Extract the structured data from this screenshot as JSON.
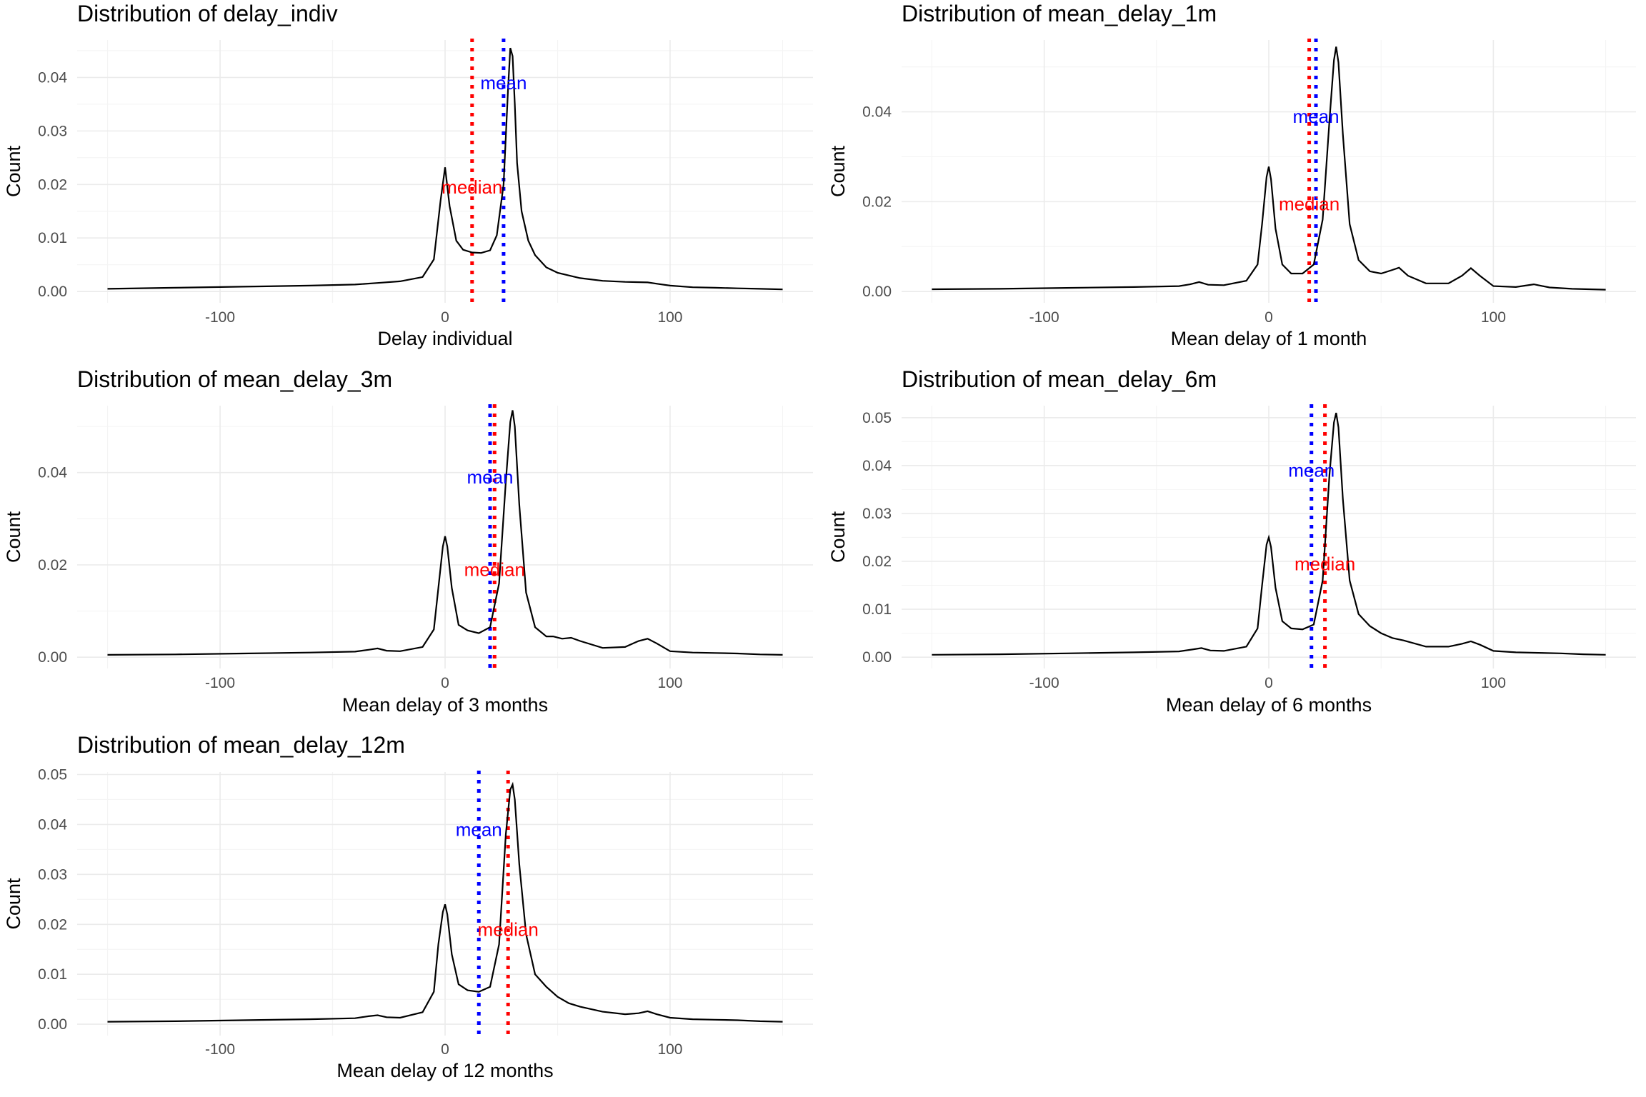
{
  "chart_data": [
    {
      "type": "line",
      "title": "Distribution of delay_indiv",
      "xlabel": "Delay individual",
      "ylabel": "Count",
      "xlim": [
        -150,
        150
      ],
      "ylim": [
        0,
        0.047
      ],
      "x_ticks": [
        -100,
        0,
        100
      ],
      "y_ticks": [
        0.0,
        0.01,
        0.02,
        0.03,
        0.04
      ],
      "y_tick_labels": [
        "0.00",
        "0.01",
        "0.02",
        "0.03",
        "0.04"
      ],
      "grid": true,
      "series": [
        {
          "x": [
            -150,
            -120,
            -90,
            -60,
            -40,
            -30,
            -20,
            -10,
            -5,
            -2,
            0,
            2,
            5,
            8,
            12,
            16,
            20,
            23,
            26,
            28,
            29,
            30,
            31,
            32,
            34,
            37,
            40,
            45,
            50,
            55,
            60,
            70,
            80,
            90,
            95,
            100,
            110,
            120,
            130,
            140,
            150
          ],
          "y": [
            0.0005,
            0.0007,
            0.0009,
            0.0011,
            0.0013,
            0.0016,
            0.0019,
            0.0027,
            0.006,
            0.017,
            0.0232,
            0.016,
            0.0095,
            0.0078,
            0.0073,
            0.0072,
            0.0077,
            0.0105,
            0.02,
            0.038,
            0.0455,
            0.044,
            0.035,
            0.024,
            0.015,
            0.0095,
            0.0068,
            0.0045,
            0.0035,
            0.003,
            0.0025,
            0.002,
            0.0018,
            0.0017,
            0.0014,
            0.0011,
            0.0008,
            0.0007,
            0.0006,
            0.0005,
            0.0004
          ]
        }
      ],
      "reference_lines": [
        {
          "label": "median",
          "x": 12,
          "color": "#ff0000",
          "label_y": 0.0195
        },
        {
          "label": "mean",
          "x": 26,
          "color": "#0000ff",
          "label_y": 0.039
        }
      ]
    },
    {
      "type": "line",
      "title": "Distribution of mean_delay_1m",
      "xlabel": "Mean delay of 1 month",
      "ylabel": "Count",
      "xlim": [
        -150,
        150
      ],
      "ylim": [
        0,
        0.056
      ],
      "x_ticks": [
        -100,
        0,
        100
      ],
      "y_ticks": [
        0.0,
        0.02,
        0.04
      ],
      "y_tick_labels": [
        "0.00",
        "0.02",
        "0.04"
      ],
      "grid": true,
      "series": [
        {
          "x": [
            -150,
            -120,
            -90,
            -60,
            -40,
            -35,
            -31,
            -27,
            -20,
            -10,
            -5,
            -3,
            -1,
            0,
            1,
            3,
            6,
            10,
            15,
            20,
            24,
            27,
            29,
            30,
            31,
            33,
            36,
            40,
            45,
            50,
            55,
            58,
            62,
            70,
            80,
            86,
            90,
            94,
            100,
            110,
            118,
            125,
            135,
            150
          ],
          "y": [
            0.0005,
            0.0006,
            0.0008,
            0.001,
            0.0012,
            0.0016,
            0.0021,
            0.0015,
            0.0014,
            0.0024,
            0.006,
            0.015,
            0.0255,
            0.0278,
            0.025,
            0.014,
            0.006,
            0.004,
            0.004,
            0.006,
            0.016,
            0.038,
            0.0515,
            0.0545,
            0.051,
            0.035,
            0.015,
            0.007,
            0.0045,
            0.004,
            0.0048,
            0.0053,
            0.0035,
            0.0018,
            0.0018,
            0.0035,
            0.0052,
            0.0035,
            0.0012,
            0.001,
            0.0016,
            0.0009,
            0.0006,
            0.0004
          ]
        }
      ],
      "reference_lines": [
        {
          "label": "median",
          "x": 18,
          "color": "#ff0000",
          "label_y": 0.0195
        },
        {
          "label": "mean",
          "x": 21,
          "color": "#0000ff",
          "label_y": 0.039
        }
      ]
    },
    {
      "type": "line",
      "title": "Distribution of mean_delay_3m",
      "xlabel": "Mean delay of 3 months",
      "ylabel": "Count",
      "xlim": [
        -150,
        150
      ],
      "ylim": [
        0,
        0.0545
      ],
      "x_ticks": [
        -100,
        0,
        100
      ],
      "y_ticks": [
        0.0,
        0.02,
        0.04
      ],
      "y_tick_labels": [
        "0.00",
        "0.02",
        "0.04"
      ],
      "grid": true,
      "series": [
        {
          "x": [
            -150,
            -120,
            -90,
            -60,
            -40,
            -34,
            -30,
            -26,
            -20,
            -10,
            -5,
            -3,
            -1,
            0,
            1,
            3,
            6,
            10,
            15,
            20,
            24,
            27,
            29,
            30,
            31,
            33,
            36,
            40,
            45,
            48,
            52,
            56,
            60,
            70,
            80,
            86,
            90,
            94,
            100,
            110,
            120,
            130,
            140,
            150
          ],
          "y": [
            0.0005,
            0.0006,
            0.0008,
            0.001,
            0.0012,
            0.0016,
            0.0019,
            0.0014,
            0.0013,
            0.0022,
            0.006,
            0.015,
            0.024,
            0.0262,
            0.024,
            0.015,
            0.007,
            0.0058,
            0.0052,
            0.0065,
            0.016,
            0.038,
            0.051,
            0.0535,
            0.05,
            0.033,
            0.014,
            0.0065,
            0.0045,
            0.0045,
            0.004,
            0.0042,
            0.0035,
            0.002,
            0.0022,
            0.0035,
            0.004,
            0.003,
            0.0013,
            0.001,
            0.0009,
            0.0008,
            0.0006,
            0.0005
          ]
        }
      ],
      "reference_lines": [
        {
          "label": "median",
          "x": 22,
          "color": "#ff0000",
          "label_y": 0.019
        },
        {
          "label": "mean",
          "x": 20,
          "color": "#0000ff",
          "label_y": 0.039
        }
      ]
    },
    {
      "type": "line",
      "title": "Distribution of mean_delay_6m",
      "xlabel": "Mean delay of 6 months",
      "ylabel": "Count",
      "xlim": [
        -150,
        150
      ],
      "ylim": [
        0,
        0.0525
      ],
      "x_ticks": [
        -100,
        0,
        100
      ],
      "y_ticks": [
        0.0,
        0.01,
        0.02,
        0.03,
        0.04,
        0.05
      ],
      "y_tick_labels": [
        "0.00",
        "0.01",
        "0.02",
        "0.03",
        "0.04",
        "0.05"
      ],
      "grid": true,
      "series": [
        {
          "x": [
            -150,
            -120,
            -90,
            -60,
            -40,
            -34,
            -30,
            -26,
            -20,
            -10,
            -5,
            -3,
            -1,
            0,
            1,
            3,
            6,
            10,
            15,
            20,
            24,
            27,
            29,
            30,
            31,
            33,
            36,
            40,
            45,
            50,
            55,
            60,
            70,
            80,
            86,
            90,
            94,
            100,
            110,
            120,
            130,
            140,
            150
          ],
          "y": [
            0.0005,
            0.0006,
            0.0008,
            0.001,
            0.0012,
            0.0016,
            0.0019,
            0.0014,
            0.0013,
            0.0022,
            0.006,
            0.015,
            0.0235,
            0.025,
            0.023,
            0.0145,
            0.0075,
            0.006,
            0.0058,
            0.0068,
            0.016,
            0.038,
            0.049,
            0.051,
            0.048,
            0.033,
            0.016,
            0.009,
            0.0065,
            0.005,
            0.004,
            0.0035,
            0.0022,
            0.0022,
            0.0028,
            0.0033,
            0.0026,
            0.0013,
            0.001,
            0.0009,
            0.0008,
            0.0006,
            0.0005
          ]
        }
      ],
      "reference_lines": [
        {
          "label": "median",
          "x": 25,
          "color": "#ff0000",
          "label_y": 0.0195
        },
        {
          "label": "mean",
          "x": 19,
          "color": "#0000ff",
          "label_y": 0.039
        }
      ]
    },
    {
      "type": "line",
      "title": "Distribution of mean_delay_12m",
      "xlabel": "Mean delay of 12 months",
      "ylabel": "Count",
      "xlim": [
        -150,
        150
      ],
      "ylim": [
        0,
        0.0505
      ],
      "x_ticks": [
        -100,
        0,
        100
      ],
      "y_ticks": [
        0.0,
        0.01,
        0.02,
        0.03,
        0.04,
        0.05
      ],
      "y_tick_labels": [
        "0.00",
        "0.01",
        "0.02",
        "0.03",
        "0.04",
        "0.05"
      ],
      "grid": true,
      "series": [
        {
          "x": [
            -150,
            -120,
            -90,
            -60,
            -40,
            -34,
            -30,
            -26,
            -20,
            -10,
            -5,
            -3,
            -1,
            0,
            1,
            3,
            6,
            10,
            15,
            20,
            24,
            27,
            29,
            30,
            31,
            33,
            36,
            40,
            45,
            50,
            55,
            60,
            70,
            80,
            86,
            90,
            94,
            100,
            110,
            120,
            130,
            140,
            150
          ],
          "y": [
            0.0005,
            0.0006,
            0.0008,
            0.001,
            0.0012,
            0.0016,
            0.0018,
            0.0014,
            0.0013,
            0.0024,
            0.0065,
            0.016,
            0.0225,
            0.024,
            0.022,
            0.014,
            0.008,
            0.0068,
            0.0065,
            0.0075,
            0.016,
            0.038,
            0.047,
            0.048,
            0.045,
            0.032,
            0.018,
            0.01,
            0.0075,
            0.0055,
            0.0042,
            0.0035,
            0.0025,
            0.002,
            0.0022,
            0.0026,
            0.002,
            0.0013,
            0.001,
            0.0009,
            0.0008,
            0.0006,
            0.0005
          ]
        }
      ],
      "reference_lines": [
        {
          "label": "median",
          "x": 28,
          "color": "#ff0000",
          "label_y": 0.019
        },
        {
          "label": "mean",
          "x": 15,
          "color": "#0000ff",
          "label_y": 0.039
        }
      ]
    }
  ]
}
